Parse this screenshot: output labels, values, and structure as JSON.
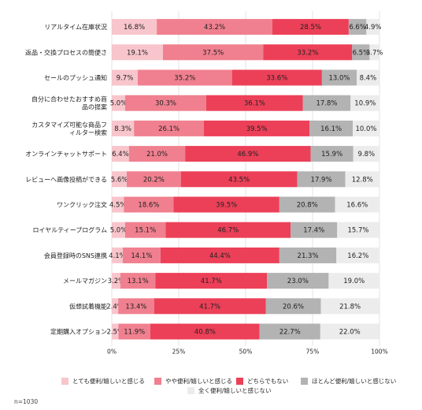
{
  "chart_data": {
    "type": "bar",
    "orientation": "horizontal",
    "stacked": true,
    "title": "",
    "xlabel": "",
    "ylabel": "",
    "xlim": [
      0,
      100
    ],
    "x_ticks": [
      "0%",
      "25%",
      "50%",
      "75%",
      "100%"
    ],
    "grid": true,
    "legend_position": "bottom",
    "categories": [
      "リアルタイム在庫状況",
      "返品・交換プロセスの簡便さ",
      "セールのプッシュ通知",
      "自分に合わせたおすすめ商品の提案",
      "カスタマイズ可能な商品フィルター検索",
      "オンラインチャットサポート",
      "レビューへ画像投稿ができる",
      "ワンクリック注文",
      "ロイヤルティープログラム",
      "会員登録時のSNS連携",
      "メールマガジン",
      "仮想試着機能",
      "定期購入オプション"
    ],
    "series": [
      {
        "name": "とても便利/嬉しいと感じる",
        "color": "#f7c5cb",
        "values": [
          16.8,
          19.1,
          9.7,
          5.0,
          8.3,
          6.4,
          5.6,
          4.5,
          5.0,
          4.1,
          3.2,
          2.4,
          2.5
        ]
      },
      {
        "name": "やや便利/嬉しいと感じる",
        "color": "#f0808f",
        "values": [
          43.2,
          37.5,
          35.2,
          30.3,
          26.1,
          21.0,
          20.2,
          18.6,
          15.1,
          14.1,
          13.1,
          13.4,
          11.9
        ]
      },
      {
        "name": "どちらでもない",
        "color": "#ec4058",
        "values": [
          28.5,
          33.2,
          33.6,
          36.1,
          39.5,
          46.9,
          43.5,
          39.5,
          46.7,
          44.4,
          41.7,
          41.7,
          40.8
        ]
      },
      {
        "name": "ほとんど便利/嬉しいと感じない",
        "color": "#b3b3b3",
        "values": [
          6.6,
          6.5,
          13.0,
          17.8,
          16.1,
          15.9,
          17.9,
          20.8,
          17.4,
          21.3,
          23.0,
          20.6,
          22.7
        ]
      },
      {
        "name": "全く便利/嬉しいと感じない",
        "color": "#ececec",
        "values": [
          4.9,
          3.7,
          8.4,
          10.9,
          10.0,
          9.8,
          12.8,
          16.6,
          15.7,
          16.2,
          19.0,
          21.8,
          22.0
        ]
      }
    ],
    "data_labels": [
      [
        "16.8%",
        "43.2%",
        "28.5%",
        "6.6%",
        "4.9%"
      ],
      [
        "19.1%",
        "37.5%",
        "33.2%",
        "6.5%",
        "3.7%"
      ],
      [
        "9.7%",
        "35.2%",
        "33.6%",
        "13.0%",
        "8.4%"
      ],
      [
        "5.0%",
        "30.3%",
        "36.1%",
        "17.8%",
        "10.9%"
      ],
      [
        "8.3%",
        "26.1%",
        "39.5%",
        "16.1%",
        "10.0%"
      ],
      [
        "6.4%",
        "21.0%",
        "46.9%",
        "15.9%",
        "9.8%"
      ],
      [
        "5.6%",
        "20.2%",
        "43.5%",
        "17.9%",
        "12.8%"
      ],
      [
        "4.5%",
        "18.6%",
        "39.5%",
        "20.8%",
        "16.6%"
      ],
      [
        "5.0%",
        "15.1%",
        "46.7%",
        "17.4%",
        "15.7%"
      ],
      [
        "4.1%",
        "14.1%",
        "44.4%",
        "21.3%",
        "16.2%"
      ],
      [
        "3.2%",
        "13.1%",
        "41.7%",
        "23.0%",
        "19.0%"
      ],
      [
        "2.4%",
        "13.4%",
        "41.7%",
        "20.6%",
        "21.8%"
      ],
      [
        "2.5%",
        "11.9%",
        "40.8%",
        "22.7%",
        "22.0%"
      ]
    ],
    "note": "n=1030"
  }
}
